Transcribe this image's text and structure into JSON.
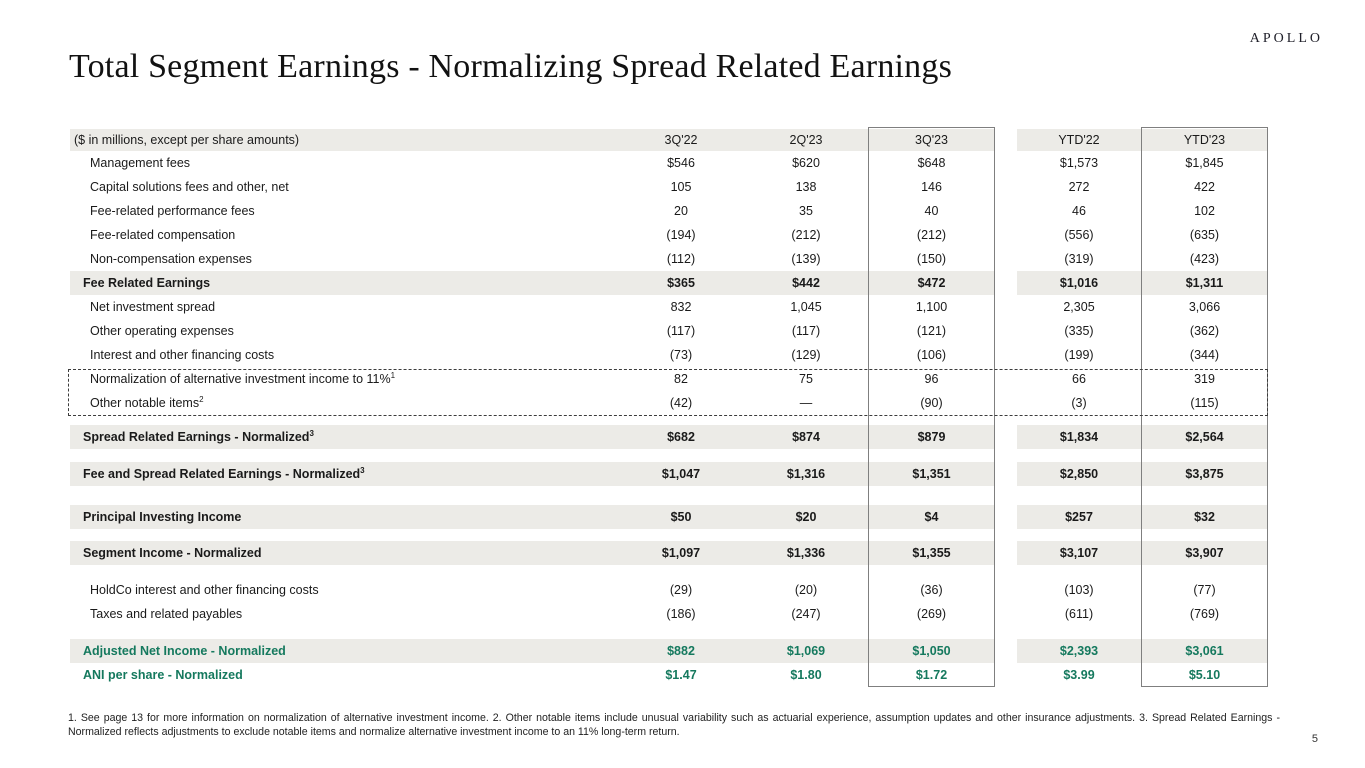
{
  "logo": "APOLLO",
  "title": "Total Segment Earnings - Normalizing Spread Related Earnings",
  "page_number": "5",
  "colors": {
    "accent_green": "#15795E",
    "row_shade": "#ECEBE7",
    "box_border": "#7f7f7f"
  },
  "table": {
    "unit_label": "($ in millions, except per share amounts)",
    "columns": [
      "3Q'22",
      "2Q'23",
      "3Q'23",
      "YTD'22",
      "YTD'23"
    ],
    "highlighted_columns": [
      "3Q'23",
      "YTD'23"
    ],
    "rows": [
      {
        "label": "Management fees",
        "sup": "",
        "style": "normal",
        "gap_before": 0,
        "values": [
          "$546",
          "$620",
          "$648",
          "$1,573",
          "$1,845"
        ]
      },
      {
        "label": "Capital solutions fees and other, net",
        "sup": "",
        "style": "normal",
        "gap_before": 0,
        "values": [
          "105",
          "138",
          "146",
          "272",
          "422"
        ]
      },
      {
        "label": "Fee-related performance fees",
        "sup": "",
        "style": "normal",
        "gap_before": 0,
        "values": [
          "20",
          "35",
          "40",
          "46",
          "102"
        ]
      },
      {
        "label": "Fee-related compensation",
        "sup": "",
        "style": "normal",
        "gap_before": 0,
        "values": [
          "(194)",
          "(212)",
          "(212)",
          "(556)",
          "(635)"
        ]
      },
      {
        "label": "Non-compensation expenses",
        "sup": "",
        "style": "normal",
        "gap_before": 0,
        "values": [
          "(112)",
          "(139)",
          "(150)",
          "(319)",
          "(423)"
        ]
      },
      {
        "label": "Fee Related Earnings",
        "sup": "",
        "style": "subtotal",
        "gap_before": 0,
        "values": [
          "$365",
          "$442",
          "$472",
          "$1,016",
          "$1,311"
        ]
      },
      {
        "label": "Net investment spread",
        "sup": "",
        "style": "normal",
        "gap_before": 0,
        "values": [
          "832",
          "1,045",
          "1,100",
          "2,305",
          "3,066"
        ]
      },
      {
        "label": "Other operating expenses",
        "sup": "",
        "style": "normal",
        "gap_before": 0,
        "values": [
          "(117)",
          "(117)",
          "(121)",
          "(335)",
          "(362)"
        ]
      },
      {
        "label": "Interest and other financing costs",
        "sup": "",
        "style": "normal",
        "gap_before": 0,
        "values": [
          "(73)",
          "(129)",
          "(106)",
          "(199)",
          "(344)"
        ]
      },
      {
        "label": "Normalization of alternative investment income to 11%",
        "sup": "1",
        "style": "normal",
        "gap_before": 0,
        "values": [
          "82",
          "75",
          "96",
          "66",
          "319"
        ]
      },
      {
        "label": "Other notable items",
        "sup": "2",
        "style": "normal",
        "gap_before": 0,
        "values": [
          "(42)",
          "—",
          "(90)",
          "(3)",
          "(115)"
        ]
      },
      {
        "label": "Spread Related Earnings - Normalized",
        "sup": "3",
        "style": "subtotal",
        "gap_before": 10,
        "values": [
          "$682",
          "$874",
          "$879",
          "$1,834",
          "$2,564"
        ]
      },
      {
        "label": "Fee and Spread Related Earnings - Normalized",
        "sup": "3",
        "style": "subtotal",
        "gap_before": 13,
        "values": [
          "$1,047",
          "$1,316",
          "$1,351",
          "$2,850",
          "$3,875"
        ]
      },
      {
        "label": "Principal Investing Income",
        "sup": "",
        "style": "subtotal",
        "gap_before": 19,
        "values": [
          "$50",
          "$20",
          "$4",
          "$257",
          "$32"
        ]
      },
      {
        "label": "Segment Income - Normalized",
        "sup": "",
        "style": "subtotal",
        "gap_before": 12,
        "values": [
          "$1,097",
          "$1,336",
          "$1,355",
          "$3,107",
          "$3,907"
        ]
      },
      {
        "label": "HoldCo interest and other financing costs",
        "sup": "",
        "style": "normal",
        "gap_before": 13,
        "values": [
          "(29)",
          "(20)",
          "(36)",
          "(103)",
          "(77)"
        ]
      },
      {
        "label": "Taxes and related payables",
        "sup": "",
        "style": "normal",
        "gap_before": 0,
        "values": [
          "(186)",
          "(247)",
          "(269)",
          "(611)",
          "(769)"
        ]
      },
      {
        "label": "Adjusted Net Income - Normalized",
        "sup": "",
        "style": "green_shaded",
        "gap_before": 13,
        "values": [
          "$882",
          "$1,069",
          "$1,050",
          "$2,393",
          "$3,061"
        ]
      },
      {
        "label": "ANI per share - Normalized",
        "sup": "",
        "style": "green",
        "gap_before": 0,
        "values": [
          "$1.47",
          "$1.80",
          "$1.72",
          "$3.99",
          "$5.10"
        ]
      }
    ]
  },
  "footnote": "1. See page 13 for more information on normalization of alternative investment income. 2. Other notable items include unusual variability such as actuarial experience, assumption updates and other insurance adjustments. 3. Spread Related Earnings - Normalized reflects adjustments to exclude notable items and normalize alternative investment income to an 11% long-term return."
}
